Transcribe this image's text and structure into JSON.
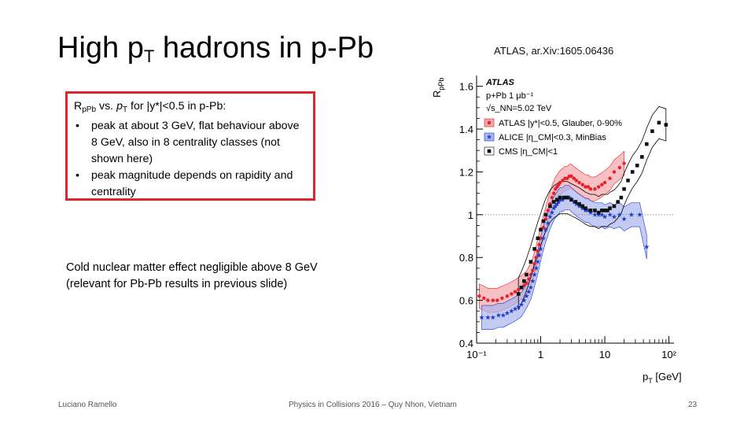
{
  "slide": {
    "title_main": "High p",
    "title_sub": "T",
    "title_rest": " hadrons in p-Pb",
    "citation": "ATLAS, ar.Xiv:1605.06436",
    "box": {
      "lead_r": "R",
      "lead_r_sub": "pPb",
      "lead_vs": " vs. ",
      "lead_pt": "p",
      "lead_pt_sub": "T",
      "lead_rest": " for |y*|<0.5 in p-Pb:",
      "bullets": [
        "peak at about 3 GeV, flat behaviour above 8 GeV, also in 8 centrality classes (not shown here)",
        "peak magnitude depends on rapidity and centrality"
      ],
      "bullet_char": "•"
    },
    "cold_line1": "Cold nuclear matter effect negligible above 8 GeV",
    "cold_line2": "(relevant for Pb-Pb results in previous slide)",
    "footer_left": "Luciano Ramello",
    "footer_mid": "Physics in Collisions 2016 – Quy Nhon, Vietnam",
    "footer_right": "23"
  },
  "chart_data": {
    "type": "scatter",
    "x_scale": "log",
    "xlim": [
      0.1,
      120
    ],
    "ylim": [
      0.4,
      1.65
    ],
    "xlabel": "p_T [GeV]",
    "ylabel": "R_pPb",
    "x_ticks": [
      {
        "value": 0.1,
        "label": "10⁻¹"
      },
      {
        "value": 1,
        "label": "1"
      },
      {
        "value": 10,
        "label": "10"
      },
      {
        "value": 100,
        "label": "10²"
      }
    ],
    "y_ticks": [
      0.4,
      0.6,
      0.8,
      1.0,
      1.2,
      1.4,
      1.6
    ],
    "y_tick_labels": [
      "0.4",
      "0.6",
      "0.8",
      "1",
      "1.2",
      "1.4",
      "1.6"
    ],
    "reference_line": 1,
    "legend_header": [
      "ATLAS",
      "p+Pb 1 μb⁻¹",
      "√s_NN=5.02 TeV"
    ],
    "series": [
      {
        "name": "ATLAS |y*|<0.5, Glauber, 0-90%",
        "color": "#e8202a",
        "band_color": "#f4a7a9",
        "marker": "circle",
        "x": [
          0.11,
          0.13,
          0.15,
          0.18,
          0.21,
          0.25,
          0.3,
          0.35,
          0.4,
          0.45,
          0.5,
          0.55,
          0.6,
          0.65,
          0.7,
          0.75,
          0.8,
          0.85,
          0.9,
          0.95,
          1.0,
          1.1,
          1.2,
          1.3,
          1.4,
          1.5,
          1.6,
          1.7,
          1.8,
          1.9,
          2.0,
          2.2,
          2.4,
          2.6,
          2.8,
          3.0,
          3.3,
          3.6,
          4.0,
          4.5,
          5.0,
          5.5,
          6.0,
          7.0,
          8.0,
          9.0,
          10,
          12,
          14,
          17,
          20
        ],
        "values": [
          0.62,
          0.61,
          0.6,
          0.6,
          0.6,
          0.61,
          0.62,
          0.63,
          0.64,
          0.65,
          0.66,
          0.67,
          0.68,
          0.7,
          0.72,
          0.74,
          0.77,
          0.8,
          0.83,
          0.86,
          0.89,
          0.94,
          0.98,
          1.02,
          1.05,
          1.08,
          1.1,
          1.12,
          1.13,
          1.14,
          1.15,
          1.16,
          1.17,
          1.17,
          1.18,
          1.18,
          1.17,
          1.16,
          1.15,
          1.14,
          1.13,
          1.13,
          1.12,
          1.12,
          1.13,
          1.14,
          1.15,
          1.17,
          1.2,
          1.22,
          1.24
        ]
      },
      {
        "name": "ALICE |η_CM|<0.3, MinBias",
        "color": "#1e3cc8",
        "band_color": "#a9b4f0",
        "marker": "star",
        "x": [
          0.12,
          0.15,
          0.18,
          0.22,
          0.26,
          0.3,
          0.35,
          0.4,
          0.45,
          0.5,
          0.55,
          0.6,
          0.65,
          0.7,
          0.75,
          0.8,
          0.85,
          0.9,
          0.95,
          1.0,
          1.1,
          1.2,
          1.3,
          1.4,
          1.5,
          1.6,
          1.7,
          1.8,
          1.9,
          2.0,
          2.2,
          2.4,
          2.6,
          2.8,
          3.0,
          3.3,
          3.6,
          4.0,
          4.5,
          5.0,
          5.5,
          6.0,
          7.0,
          8.0,
          9.0,
          10,
          12,
          14,
          17,
          20,
          26,
          35,
          45
        ],
        "values": [
          0.52,
          0.52,
          0.52,
          0.53,
          0.53,
          0.54,
          0.55,
          0.56,
          0.57,
          0.58,
          0.6,
          0.62,
          0.64,
          0.66,
          0.69,
          0.72,
          0.75,
          0.78,
          0.81,
          0.84,
          0.89,
          0.93,
          0.96,
          0.99,
          1.01,
          1.03,
          1.04,
          1.05,
          1.06,
          1.07,
          1.07,
          1.08,
          1.08,
          1.08,
          1.07,
          1.06,
          1.05,
          1.04,
          1.03,
          1.02,
          1.02,
          1.01,
          1.0,
          1.0,
          1.0,
          0.99,
          1.0,
          0.99,
          1.0,
          0.98,
          1.0,
          1.0,
          0.85
        ]
      },
      {
        "name": "CMS |η_CM|<1",
        "color": "#111111",
        "band_color": "#000000",
        "marker": "square",
        "x": [
          0.45,
          0.5,
          0.55,
          0.6,
          0.7,
          0.8,
          0.9,
          1.0,
          1.1,
          1.2,
          1.4,
          1.6,
          1.8,
          2.0,
          2.3,
          2.6,
          3.0,
          3.5,
          4.0,
          4.5,
          5.0,
          6.0,
          7.0,
          8.0,
          9.0,
          10,
          11,
          12,
          14,
          16,
          18,
          20,
          23,
          27,
          32,
          38,
          45,
          55,
          70,
          90
        ],
        "values": [
          0.63,
          0.66,
          0.69,
          0.72,
          0.78,
          0.84,
          0.89,
          0.93,
          0.97,
          1.0,
          1.04,
          1.06,
          1.07,
          1.08,
          1.08,
          1.08,
          1.07,
          1.06,
          1.05,
          1.04,
          1.03,
          1.02,
          1.02,
          1.01,
          1.02,
          1.02,
          1.02,
          1.03,
          1.04,
          1.06,
          1.08,
          1.12,
          1.16,
          1.2,
          1.23,
          1.27,
          1.33,
          1.39,
          1.43,
          1.42
        ]
      }
    ]
  }
}
